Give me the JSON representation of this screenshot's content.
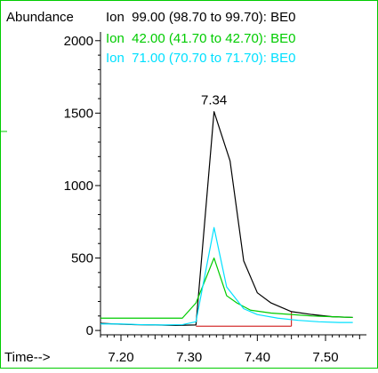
{
  "chart_data": {
    "type": "line",
    "ylabel": "Abundance",
    "xlabel": "Time-->",
    "xlim": [
      7.17,
      7.56
    ],
    "ylim": [
      -30,
      2060
    ],
    "x_ticks": [
      7.2,
      7.3,
      7.4,
      7.5
    ],
    "x_tick_labels": [
      "7.20",
      "7.30",
      "7.40",
      "7.50"
    ],
    "y_ticks": [
      0,
      500,
      1000,
      1500,
      2000
    ],
    "y_tick_labels": [
      "0",
      "500",
      "1000",
      "1500",
      "2000"
    ],
    "legend_placement": "top",
    "series": [
      {
        "name": "Ion  99.00 (98.70 to 99.70): BE0",
        "color": "#000000",
        "x": [
          7.17,
          7.19,
          7.22,
          7.25,
          7.28,
          7.31,
          7.3365,
          7.36,
          7.38,
          7.4,
          7.42,
          7.45,
          7.48,
          7.51,
          7.54
        ],
        "y": [
          50,
          45,
          40,
          38,
          35,
          38,
          1510,
          1170,
          480,
          260,
          190,
          130,
          110,
          95,
          90
        ]
      },
      {
        "name": "Ion  42.00 (41.70 to 42.70): BE0",
        "color": "#00cc00",
        "x": [
          7.17,
          7.22,
          7.26,
          7.29,
          7.31,
          7.3365,
          7.355,
          7.37,
          7.39,
          7.42,
          7.45,
          7.48,
          7.51,
          7.54
        ],
        "y": [
          85,
          85,
          85,
          85,
          190,
          500,
          240,
          190,
          140,
          120,
          110,
          100,
          95,
          90
        ]
      },
      {
        "name": "Ion  71.00 (70.70 to 71.70): BE0",
        "color": "#00e0ff",
        "x": [
          7.17,
          7.2,
          7.23,
          7.26,
          7.29,
          7.31,
          7.3365,
          7.355,
          7.38,
          7.4,
          7.43,
          7.46,
          7.49,
          7.52,
          7.54
        ],
        "y": [
          45,
          45,
          40,
          38,
          40,
          60,
          710,
          300,
          150,
          110,
          85,
          70,
          60,
          55,
          55
        ]
      }
    ],
    "baseline": {
      "color": "#cc0000",
      "x": [
        7.31,
        7.45
      ],
      "y": [
        30,
        30
      ]
    },
    "peak_annotation": {
      "label": "7.34",
      "x": 7.3365,
      "y": 1510
    }
  }
}
